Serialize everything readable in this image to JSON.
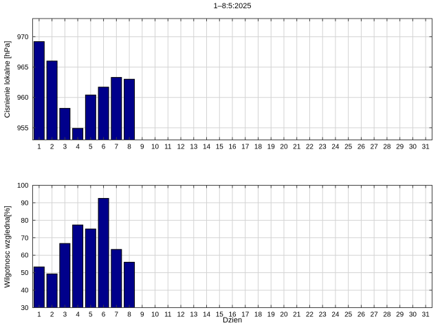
{
  "figure": {
    "title": "1–8:5:2025",
    "background": "#ffffff"
  },
  "colors": {
    "bar_fill": "#00008B",
    "bar_edge": "#000000",
    "grid": "#d3d3d3",
    "axis": "#404040",
    "text": "#000000",
    "background": "#ffffff"
  },
  "chart_data": [
    {
      "type": "bar",
      "title": "1–8:5:2025",
      "ylabel": "Cisnienie lokalne [hPa]",
      "xlabel": "",
      "x": [
        1,
        2,
        3,
        4,
        5,
        6,
        7,
        8
      ],
      "values": [
        969.2,
        966.0,
        958.2,
        954.9,
        960.4,
        961.7,
        963.3,
        963.0
      ],
      "xlim": [
        0.5,
        31.5
      ],
      "ylim": [
        953,
        973
      ],
      "xticks": [
        1,
        2,
        3,
        4,
        5,
        6,
        7,
        8,
        9,
        10,
        11,
        12,
        13,
        14,
        15,
        16,
        17,
        18,
        19,
        20,
        21,
        22,
        23,
        24,
        25,
        26,
        27,
        28,
        29,
        30,
        31
      ],
      "yticks": [
        955,
        960,
        965,
        970
      ],
      "grid": true,
      "legend": null,
      "bar_width_units": 0.8
    },
    {
      "type": "bar",
      "title": "",
      "ylabel": "Wilgotnosc wzgledna[%]",
      "xlabel": "Dzien",
      "x": [
        1,
        2,
        3,
        4,
        5,
        6,
        7,
        8
      ],
      "values": [
        53.3,
        49.3,
        66.7,
        77.3,
        75.0,
        92.5,
        63.3,
        56.0
      ],
      "xlim": [
        0.5,
        31.5
      ],
      "ylim": [
        30,
        100
      ],
      "xticks": [
        1,
        2,
        3,
        4,
        5,
        6,
        7,
        8,
        9,
        10,
        11,
        12,
        13,
        14,
        15,
        16,
        17,
        18,
        19,
        20,
        21,
        22,
        23,
        24,
        25,
        26,
        27,
        28,
        29,
        30,
        31
      ],
      "yticks": [
        30,
        40,
        50,
        60,
        70,
        80,
        90,
        100
      ],
      "grid": true,
      "legend": null,
      "bar_width_units": 0.8
    }
  ]
}
